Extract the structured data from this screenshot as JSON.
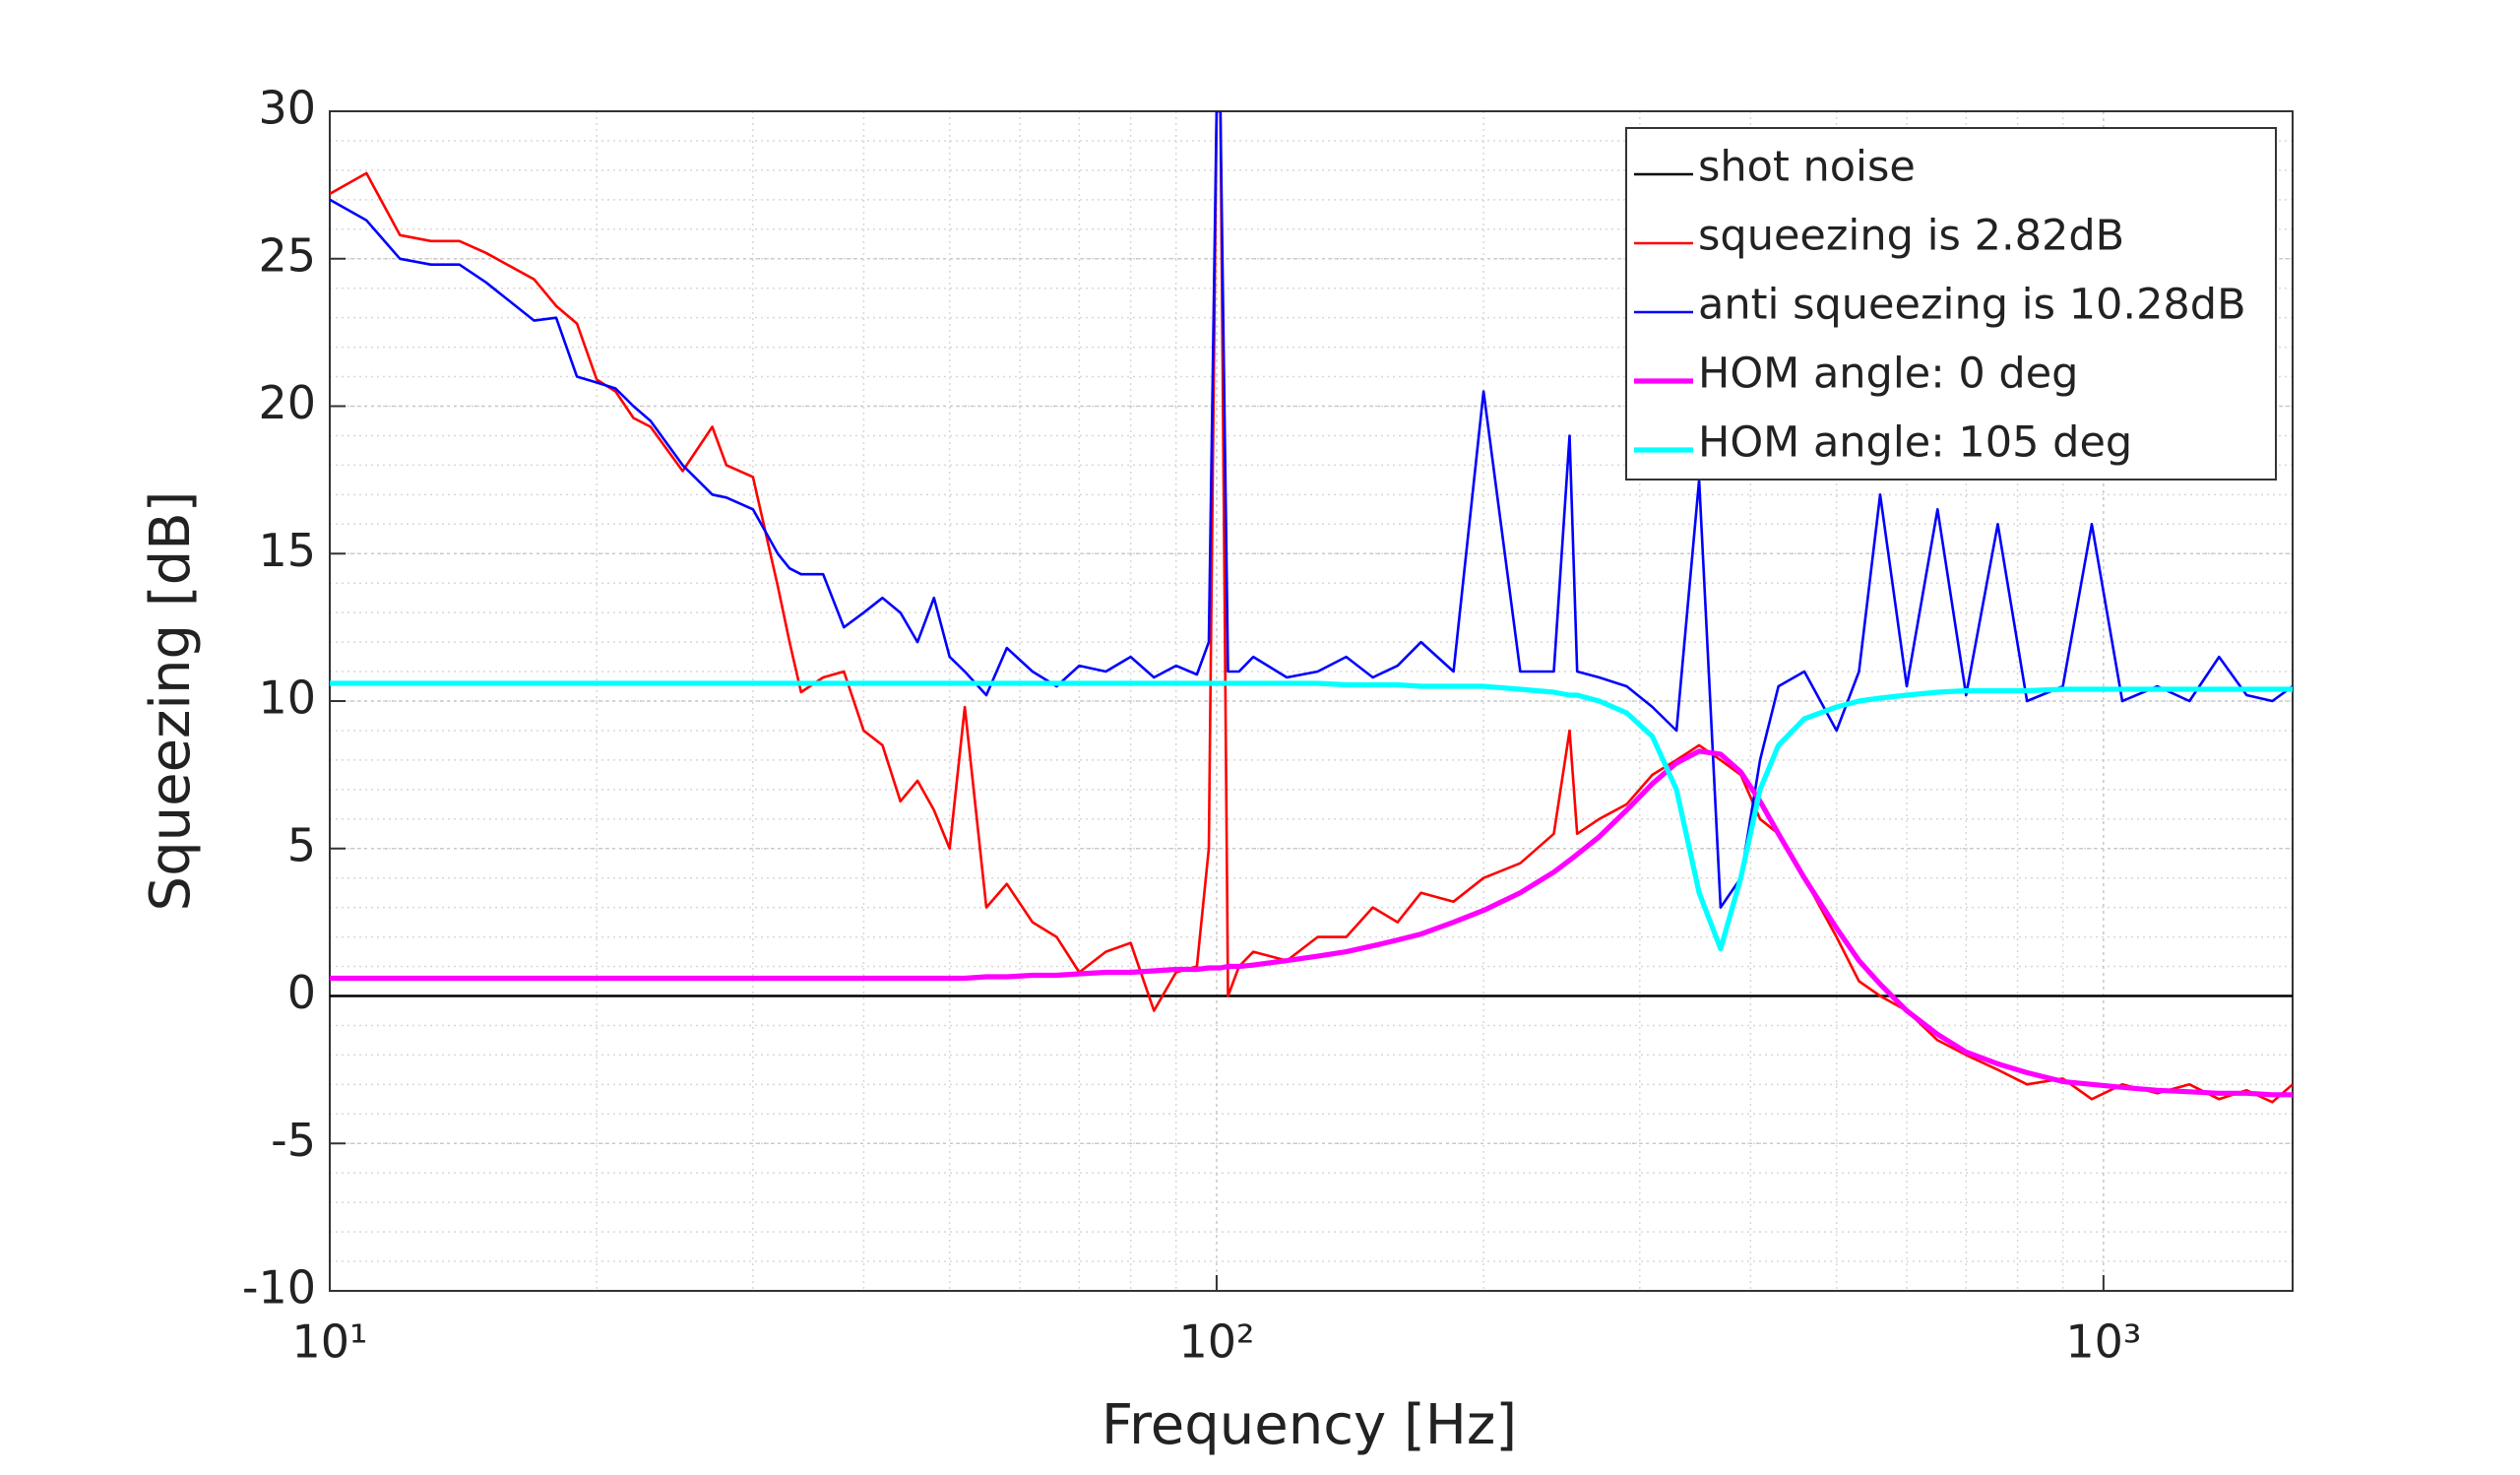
{
  "chart_data": {
    "type": "line",
    "xlabel": "Frequency [Hz]",
    "ylabel": "Squeezing [dB]",
    "xscale": "log",
    "grid": true,
    "minor_grid": true,
    "legend": "upper right",
    "xlim": [
      10,
      1634
    ],
    "ylim": [
      -10,
      30
    ],
    "xticks": [
      {
        "value": 10,
        "label": "10¹"
      },
      {
        "value": 100,
        "label": "10²"
      },
      {
        "value": 1000,
        "label": "10³"
      }
    ],
    "yticks": [
      30,
      25,
      20,
      15,
      10,
      5,
      0,
      -5,
      -10
    ],
    "x": [
      10,
      11,
      12,
      13,
      14,
      15,
      17,
      18,
      19,
      20,
      21,
      22,
      23,
      25,
      27,
      28,
      30,
      32,
      33,
      34,
      36,
      38,
      40,
      42,
      44,
      46,
      48,
      50,
      52,
      55,
      58,
      62,
      66,
      70,
      75,
      80,
      85,
      90,
      95,
      98,
      100,
      101,
      103,
      106,
      110,
      120,
      130,
      140,
      150,
      160,
      170,
      185,
      200,
      220,
      240,
      250,
      255,
      270,
      290,
      310,
      330,
      350,
      370,
      390,
      410,
      430,
      460,
      500,
      530,
      560,
      600,
      650,
      700,
      760,
      820,
      900,
      970,
      1050,
      1150,
      1250,
      1350,
      1450,
      1550,
      1634
    ],
    "series": [
      {
        "name": "shot noise",
        "color": "#000000",
        "width": 1,
        "x": [
          10,
          1634
        ],
        "values": [
          0,
          0
        ]
      },
      {
        "name": "squeezing is 2.82dB",
        "color": "#ff0000",
        "width": 1,
        "values": [
          27.2,
          27.9,
          25.8,
          25.6,
          25.6,
          25.2,
          24.3,
          23.4,
          22.8,
          20.9,
          20.5,
          19.6,
          19.3,
          17.8,
          19.3,
          18.0,
          17.6,
          13.9,
          12.0,
          10.3,
          10.8,
          11.0,
          9.0,
          8.5,
          6.6,
          7.3,
          6.3,
          5.0,
          9.8,
          3.0,
          3.8,
          2.5,
          2.0,
          0.8,
          1.5,
          1.8,
          -0.5,
          0.8,
          1.0,
          5,
          30,
          30,
          0,
          1.0,
          1.5,
          1.2,
          2.0,
          2.0,
          3.0,
          2.5,
          3.5,
          3.2,
          4.0,
          4.5,
          5.5,
          9.0,
          5.5,
          6.0,
          6.5,
          7.5,
          8.0,
          8.5,
          8.0,
          7.5,
          6.0,
          5.5,
          4.0,
          2.0,
          0.5,
          0.0,
          -0.5,
          -1.5,
          -2.0,
          -2.5,
          -3.0,
          -2.8,
          -3.5,
          -3.0,
          -3.3,
          -3.0,
          -3.5,
          -3.2,
          -3.6,
          -3.0
        ]
      },
      {
        "name": "anti squeezing is 10.28dB",
        "color": "#0000ff",
        "width": 1,
        "values": [
          27.0,
          26.3,
          25.0,
          24.8,
          24.8,
          24.2,
          22.9,
          23.0,
          21.0,
          20.8,
          20.6,
          20.0,
          19.5,
          18.0,
          17.0,
          16.9,
          16.5,
          15.0,
          14.5,
          14.3,
          14.3,
          12.5,
          13.0,
          13.5,
          13.0,
          12.0,
          13.5,
          11.5,
          11.0,
          10.2,
          11.8,
          11.0,
          10.5,
          11.2,
          11.0,
          11.5,
          10.8,
          11.2,
          10.9,
          12,
          30,
          30,
          11,
          11.0,
          11.5,
          10.8,
          11.0,
          11.5,
          10.8,
          11.2,
          12.0,
          11.0,
          20.5,
          11.0,
          11.0,
          19.0,
          11.0,
          10.8,
          10.5,
          9.8,
          9.0,
          17.5,
          3.0,
          4.0,
          8.0,
          10.5,
          11.0,
          9.0,
          11.0,
          17,
          10.5,
          16.5,
          10.2,
          16,
          10,
          10.5,
          16,
          10,
          10.5,
          10.0,
          11.5,
          10.2,
          10.0,
          10.5
        ]
      },
      {
        "name": "HOM angle: 0 deg",
        "color": "#ff00ff",
        "width": 2,
        "values": [
          0.6,
          0.6,
          0.6,
          0.6,
          0.6,
          0.6,
          0.6,
          0.6,
          0.6,
          0.6,
          0.6,
          0.6,
          0.6,
          0.6,
          0.6,
          0.6,
          0.6,
          0.6,
          0.6,
          0.6,
          0.6,
          0.6,
          0.6,
          0.6,
          0.6,
          0.6,
          0.6,
          0.6,
          0.6,
          0.65,
          0.65,
          0.7,
          0.7,
          0.75,
          0.8,
          0.8,
          0.85,
          0.9,
          0.9,
          0.95,
          0.95,
          0.95,
          1.0,
          1.0,
          1.05,
          1.2,
          1.35,
          1.5,
          1.7,
          1.9,
          2.1,
          2.5,
          2.9,
          3.5,
          4.2,
          4.6,
          4.8,
          5.4,
          6.3,
          7.2,
          7.9,
          8.3,
          8.2,
          7.6,
          6.6,
          5.5,
          4.0,
          2.3,
          1.2,
          0.4,
          -0.5,
          -1.3,
          -1.9,
          -2.3,
          -2.6,
          -2.9,
          -3.0,
          -3.1,
          -3.2,
          -3.25,
          -3.3,
          -3.3,
          -3.35,
          -3.35
        ]
      },
      {
        "name": "HOM angle: 105 deg",
        "color": "#00ffff",
        "width": 2,
        "values": [
          10.6,
          10.6,
          10.6,
          10.6,
          10.6,
          10.6,
          10.6,
          10.6,
          10.6,
          10.6,
          10.6,
          10.6,
          10.6,
          10.6,
          10.6,
          10.6,
          10.6,
          10.6,
          10.6,
          10.6,
          10.6,
          10.6,
          10.6,
          10.6,
          10.6,
          10.6,
          10.6,
          10.6,
          10.6,
          10.6,
          10.6,
          10.6,
          10.6,
          10.6,
          10.6,
          10.6,
          10.6,
          10.6,
          10.6,
          10.6,
          10.6,
          10.6,
          10.6,
          10.6,
          10.6,
          10.6,
          10.6,
          10.55,
          10.55,
          10.55,
          10.5,
          10.5,
          10.5,
          10.4,
          10.3,
          10.2,
          10.2,
          10.0,
          9.6,
          8.8,
          7.0,
          3.5,
          1.6,
          4.0,
          7.0,
          8.5,
          9.4,
          9.8,
          10.0,
          10.1,
          10.2,
          10.3,
          10.35,
          10.35,
          10.35,
          10.4,
          10.4,
          10.4,
          10.4,
          10.4,
          10.4,
          10.4,
          10.4,
          10.4
        ]
      }
    ]
  }
}
